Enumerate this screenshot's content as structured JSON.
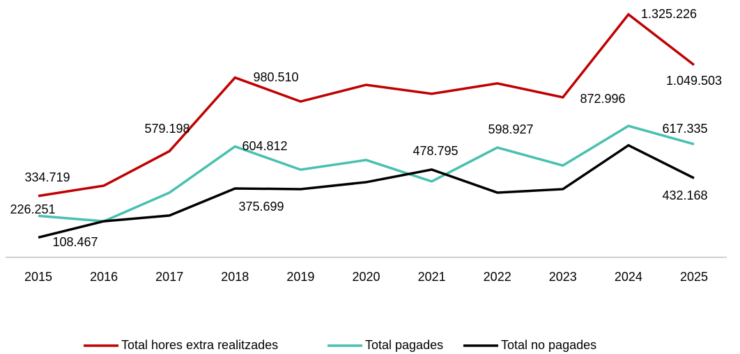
{
  "chart_data": {
    "type": "line",
    "categories": [
      "2015",
      "2016",
      "2017",
      "2018",
      "2019",
      "2020",
      "2021",
      "2022",
      "2023",
      "2024",
      "2025"
    ],
    "ylim": [
      0,
      1400000
    ],
    "legend": "bottom",
    "series": [
      {
        "name": "Total hores extra realitzades",
        "color": "#c00000",
        "values": [
          334719,
          391000,
          579198,
          980510,
          850000,
          941000,
          892000,
          949000,
          872996,
          1325226,
          1049503
        ],
        "value_labels": [
          "334.719",
          null,
          "579.198",
          "980.510",
          null,
          null,
          null,
          null,
          "872.996",
          "1.325.226",
          "1.049.503"
        ]
      },
      {
        "name": "Total pagades",
        "color": "#48c0b0",
        "values": [
          226251,
          197000,
          353000,
          604812,
          478000,
          531000,
          414000,
          598927,
          501000,
          717000,
          617335
        ],
        "value_labels": [
          "226.251",
          null,
          null,
          "604.812",
          null,
          null,
          null,
          "598.927",
          null,
          null,
          "617.335"
        ]
      },
      {
        "name": "Total no pagades",
        "color": "#000000",
        "values": [
          108467,
          197000,
          228000,
          375699,
          372000,
          410000,
          478795,
          353000,
          372000,
          611000,
          432168
        ],
        "value_labels": [
          "108.467",
          null,
          null,
          "375.699",
          null,
          null,
          "478.795",
          null,
          null,
          null,
          "432.168"
        ]
      }
    ]
  }
}
